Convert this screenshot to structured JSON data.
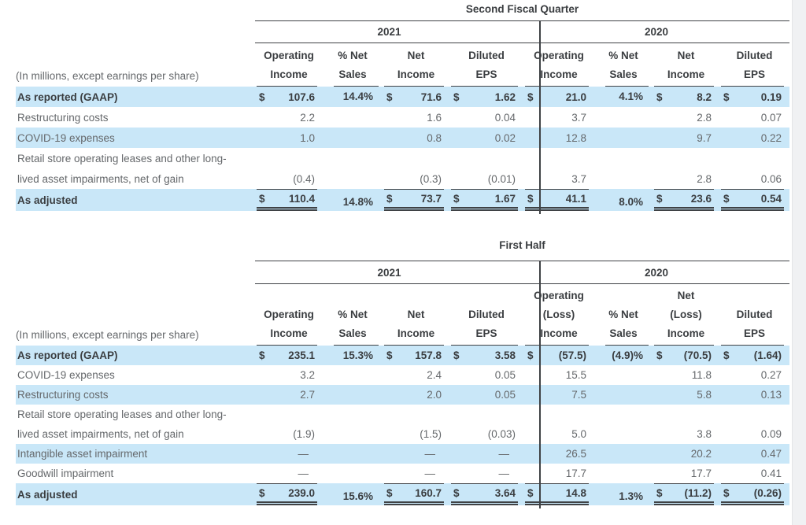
{
  "colors": {
    "highlight_blue": "#c9e7f8",
    "rule_dark": "#3f4245",
    "text_dark": "#3a3d40",
    "text_gray": "#65686b",
    "page_edge_gray": "#f0f1f3"
  },
  "tables": [
    {
      "title": "Second Fiscal Quarter",
      "note": "(In millions, except earnings per share)",
      "year_groups": [
        {
          "year": "2021",
          "columns": [
            [
              "Operating",
              "Income"
            ],
            [
              "% Net",
              "Sales"
            ],
            [
              "Net",
              "Income"
            ],
            [
              "Diluted",
              "EPS"
            ]
          ]
        },
        {
          "year": "2020",
          "columns": [
            [
              "Operating",
              "Income"
            ],
            [
              "% Net",
              "Sales"
            ],
            [
              "Net",
              "Income"
            ],
            [
              "Diluted",
              "EPS"
            ]
          ]
        }
      ],
      "rows": [
        {
          "label": "As reported (GAAP)",
          "highlight": true,
          "bold": true,
          "dollar": true,
          "values": [
            "107.6",
            "14.4%",
            "71.6",
            "1.62",
            "21.0",
            "4.1%",
            "8.2",
            "0.19"
          ]
        },
        {
          "label": "Restructuring costs",
          "values": [
            "2.2",
            "",
            "1.6",
            "0.04",
            "3.7",
            "",
            "2.8",
            "0.07"
          ]
        },
        {
          "label": "COVID-19 expenses",
          "highlight": true,
          "values": [
            "1.0",
            "",
            "0.8",
            "0.02",
            "12.8",
            "",
            "9.7",
            "0.22"
          ]
        },
        {
          "label": "Retail store operating leases and other long-",
          "values": [
            "",
            "",
            "",
            "",
            "",
            "",
            "",
            ""
          ]
        },
        {
          "label": "lived asset impairments, net of gain",
          "values": [
            "(0.4)",
            "",
            "(0.3)",
            "(0.01)",
            "3.7",
            "",
            "2.8",
            "0.06"
          ]
        },
        {
          "label": "As adjusted",
          "highlight": true,
          "bold": true,
          "dollar": true,
          "total": true,
          "values": [
            "110.4",
            "14.8%",
            "73.7",
            "1.67",
            "41.1",
            "8.0%",
            "23.6",
            "0.54"
          ]
        }
      ]
    },
    {
      "title": "First Half",
      "note": "(In millions, except earnings per share)",
      "year_groups": [
        {
          "year": "2021",
          "columns": [
            [
              "Operating",
              "Income"
            ],
            [
              "% Net",
              "Sales"
            ],
            [
              "Net",
              "Income"
            ],
            [
              "Diluted",
              "EPS"
            ]
          ]
        },
        {
          "year": "2020",
          "columns": [
            [
              "Operating",
              "(Loss)",
              "Income"
            ],
            [
              "% Net",
              "Sales"
            ],
            [
              "Net",
              "(Loss)",
              "Income"
            ],
            [
              "Diluted",
              "EPS"
            ]
          ]
        }
      ],
      "rows": [
        {
          "label": "As reported (GAAP)",
          "highlight": true,
          "bold": true,
          "dollar": true,
          "values": [
            "235.1",
            "15.3%",
            "157.8",
            "3.58",
            "(57.5)",
            "(4.9)%",
            "(70.5)",
            "(1.64)"
          ]
        },
        {
          "label": "COVID-19 expenses",
          "values": [
            "3.2",
            "",
            "2.4",
            "0.05",
            "15.5",
            "",
            "11.8",
            "0.27"
          ]
        },
        {
          "label": "Restructuring costs",
          "highlight": true,
          "values": [
            "2.7",
            "",
            "2.0",
            "0.05",
            "7.5",
            "",
            "5.8",
            "0.13"
          ]
        },
        {
          "label": "Retail store operating leases and other long-",
          "values": [
            "",
            "",
            "",
            "",
            "",
            "",
            "",
            ""
          ]
        },
        {
          "label": "lived asset impairments, net of gain",
          "values": [
            "(1.9)",
            "",
            "(1.5)",
            "(0.03)",
            "5.0",
            "",
            "3.8",
            "0.09"
          ]
        },
        {
          "label": "Intangible asset impairment",
          "highlight": true,
          "values": [
            "—",
            "",
            "—",
            "—",
            "26.5",
            "",
            "20.2",
            "0.47"
          ]
        },
        {
          "label": "Goodwill impairment",
          "values": [
            "—",
            "",
            "—",
            "—",
            "17.7",
            "",
            "17.7",
            "0.41"
          ]
        },
        {
          "label": "As adjusted",
          "highlight": true,
          "bold": true,
          "dollar": true,
          "total": true,
          "values": [
            "239.0",
            "15.6%",
            "160.7",
            "3.64",
            "14.8",
            "1.3%",
            "(11.2)",
            "(0.26)"
          ]
        }
      ]
    }
  ]
}
